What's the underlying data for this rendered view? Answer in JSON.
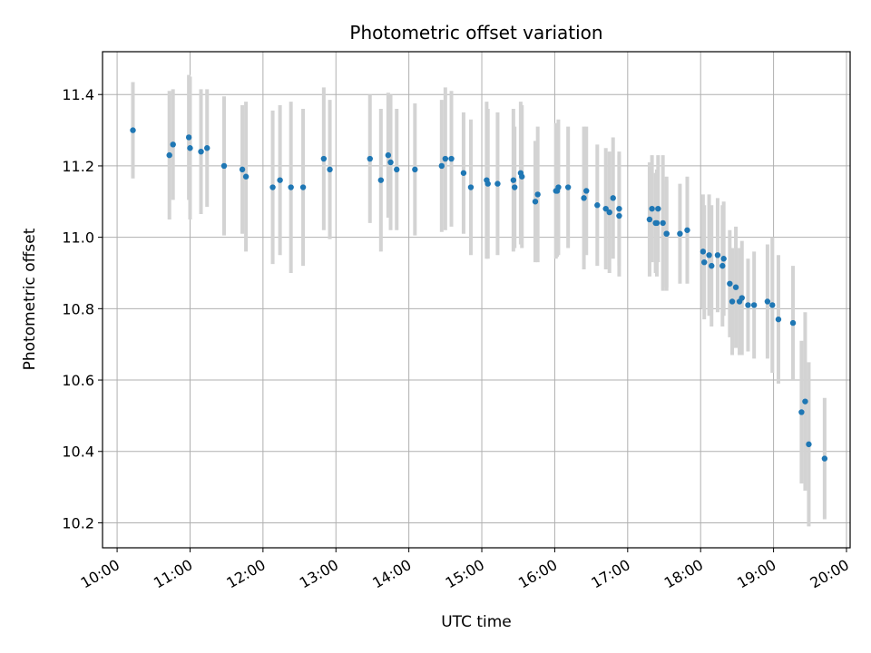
{
  "chart_data": {
    "type": "scatter",
    "title": "Photometric offset variation",
    "xlabel": "UTC time",
    "ylabel": "Photometric offset",
    "xlim": [
      "09:48",
      "20:03"
    ],
    "ylim": [
      10.13,
      11.52
    ],
    "x_ticks": [
      "10:00",
      "11:00",
      "12:00",
      "13:00",
      "14:00",
      "15:00",
      "16:00",
      "17:00",
      "18:00",
      "19:00",
      "20:00"
    ],
    "y_ticks": [
      "10.2",
      "10.4",
      "10.6",
      "10.8",
      "11.0",
      "11.2",
      "11.4"
    ],
    "grid": true,
    "colors": {
      "point": "#1f77b4",
      "errorbar": "#d3d3d3",
      "grid": "#b0b0b0",
      "axes": "#000000"
    },
    "series": [
      {
        "x": [
          "10:13",
          "10:43",
          "10:46",
          "10:59",
          "11:00",
          "11:09",
          "11:14",
          "11:28",
          "11:43",
          "11:46",
          "12:08",
          "12:14",
          "12:23",
          "12:33",
          "12:50",
          "12:55",
          "13:28",
          "13:37",
          "13:43",
          "13:45",
          "13:50",
          "14:05",
          "14:27",
          "14:30",
          "14:35",
          "14:45",
          "14:51",
          "15:04",
          "15:05",
          "15:13",
          "15:26",
          "15:27",
          "15:32",
          "15:33",
          "15:44",
          "15:46",
          "16:01",
          "16:02",
          "16:03",
          "16:11",
          "16:24",
          "16:26",
          "16:35",
          "16:42",
          "16:45",
          "16:48",
          "16:53",
          "16:53",
          "17:18",
          "17:20",
          "17:23",
          "17:24",
          "17:25",
          "17:29",
          "17:32",
          "17:32",
          "17:43",
          "17:49",
          "18:02",
          "18:03",
          "18:07",
          "18:09",
          "18:14",
          "18:18",
          "18:19",
          "18:24",
          "18:26",
          "18:29",
          "18:32",
          "18:34",
          "18:39",
          "18:44",
          "18:55",
          "18:59",
          "19:04",
          "19:16",
          "19:23",
          "19:26",
          "19:29",
          "19:42"
        ],
        "y": [
          11.3,
          11.23,
          11.26,
          11.28,
          11.25,
          11.24,
          11.25,
          11.2,
          11.19,
          11.17,
          11.14,
          11.16,
          11.14,
          11.14,
          11.22,
          11.19,
          11.22,
          11.16,
          11.23,
          11.21,
          11.19,
          11.19,
          11.2,
          11.22,
          11.22,
          11.18,
          11.14,
          11.16,
          11.15,
          11.15,
          11.16,
          11.14,
          11.18,
          11.17,
          11.1,
          11.12,
          11.13,
          11.13,
          11.14,
          11.14,
          11.11,
          11.13,
          11.09,
          11.08,
          11.07,
          11.11,
          11.08,
          11.06,
          11.05,
          11.08,
          11.04,
          11.04,
          11.08,
          11.04,
          11.01,
          11.01,
          11.01,
          11.02,
          10.96,
          10.93,
          10.95,
          10.92,
          10.95,
          10.92,
          10.94,
          10.87,
          10.82,
          10.86,
          10.82,
          10.83,
          10.81,
          10.81,
          10.82,
          10.81,
          10.77,
          10.76,
          10.51,
          10.54,
          10.42,
          10.38
        ],
        "err": [
          0.135,
          0.18,
          0.155,
          0.175,
          0.2,
          0.175,
          0.165,
          0.195,
          0.18,
          0.21,
          0.215,
          0.21,
          0.24,
          0.22,
          0.2,
          0.195,
          0.18,
          0.2,
          0.175,
          0.19,
          0.17,
          0.185,
          0.185,
          0.2,
          0.19,
          0.17,
          0.19,
          0.22,
          0.21,
          0.2,
          0.2,
          0.17,
          0.2,
          0.2,
          0.17,
          0.19,
          0.19,
          0.185,
          0.19,
          0.17,
          0.2,
          0.18,
          0.17,
          0.17,
          0.17,
          0.17,
          0.16,
          0.17,
          0.16,
          0.15,
          0.14,
          0.15,
          0.15,
          0.19,
          0.15,
          0.16,
          0.14,
          0.15,
          0.16,
          0.16,
          0.17,
          0.17,
          0.16,
          0.17,
          0.16,
          0.15,
          0.15,
          0.17,
          0.15,
          0.16,
          0.13,
          0.15,
          0.16,
          0.19,
          0.18,
          0.16,
          0.2,
          0.25,
          0.23,
          0.17
        ]
      }
    ]
  }
}
